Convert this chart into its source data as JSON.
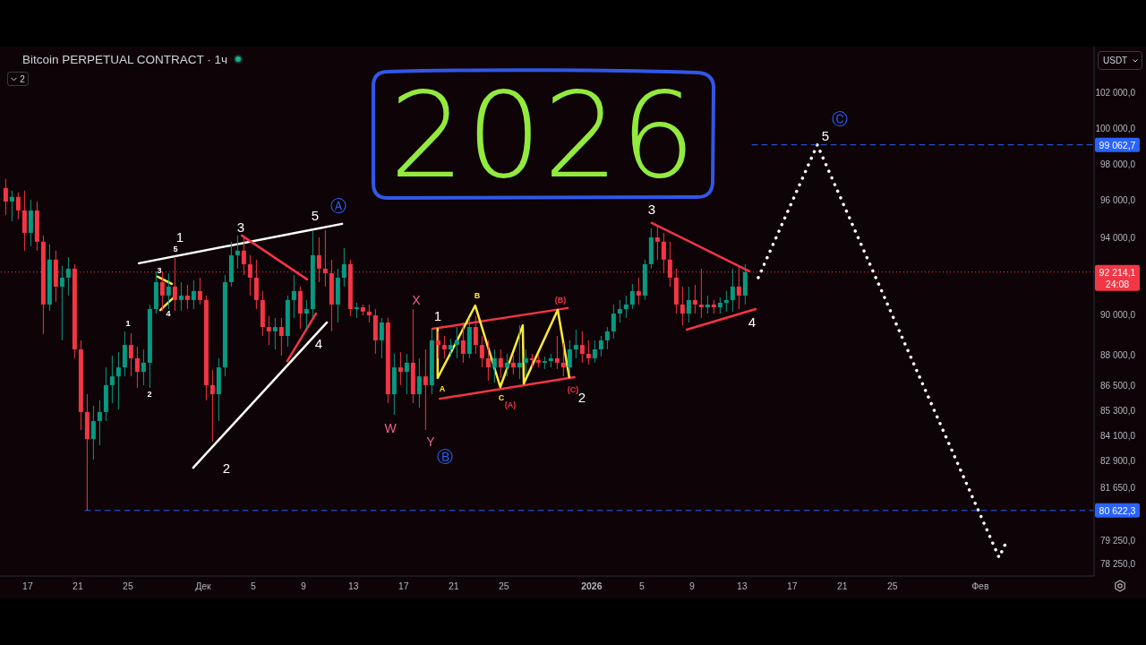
{
  "chart_data": {
    "type": "candlestick",
    "title": "Bitcoin PERPETUAL CONTRACT · 1ч",
    "ylabel": "USDT",
    "log": true,
    "marker": "none",
    "xlim": [
      "2025-11-14T19:00",
      "2026-02-10T02:00"
    ],
    "xticks": [
      {
        "value": "2025-11-17",
        "label": "17"
      },
      {
        "value": "2025-11-21",
        "label": "21"
      },
      {
        "value": "2025-11-25",
        "label": "25"
      },
      {
        "value": "2025-12-01",
        "label": "Дек"
      },
      {
        "value": "2025-12-05",
        "label": "5"
      },
      {
        "value": "2025-12-09",
        "label": "9"
      },
      {
        "value": "2025-12-13",
        "label": "13"
      },
      {
        "value": "2025-12-17",
        "label": "17"
      },
      {
        "value": "2025-12-21",
        "label": "21"
      },
      {
        "value": "2025-12-25",
        "label": "25"
      },
      {
        "value": "2026-01-01",
        "label": "2026"
      },
      {
        "value": "2026-01-05",
        "label": "5"
      },
      {
        "value": "2026-01-09",
        "label": "9"
      },
      {
        "value": "2026-01-13",
        "label": "13"
      },
      {
        "value": "2026-01-17",
        "label": "17"
      },
      {
        "value": "2026-01-21",
        "label": "21"
      },
      {
        "value": "2026-01-25",
        "label": "25"
      },
      {
        "value": "2026-02-01",
        "label": "Фев"
      }
    ],
    "ylim": [
      77700,
      104700
    ],
    "yticks": [
      {
        "value": 102000,
        "label": "102 000,0"
      },
      {
        "value": 100000,
        "label": "100 000,0"
      },
      {
        "value": 98000,
        "label": "98 000,0"
      },
      {
        "value": 96000,
        "label": "96 000,0"
      },
      {
        "value": 94000,
        "label": "94 000,0"
      },
      {
        "value": 90000,
        "label": "90 000,0"
      },
      {
        "value": 88000,
        "label": "88 000,0"
      },
      {
        "value": 86500,
        "label": "86 500,0"
      },
      {
        "value": 85300,
        "label": "85 300,0"
      },
      {
        "value": 84100,
        "label": "84 100,0"
      },
      {
        "value": 82900,
        "label": "82 900,0"
      },
      {
        "value": 81650,
        "label": "81 650,0"
      },
      {
        "value": 79250,
        "label": "79 250,0"
      },
      {
        "value": 78250,
        "label": "78 250,0"
      }
    ],
    "x": [
      "2025-11-15T06:00",
      "2025-11-15T18:00",
      "2025-11-16T06:00",
      "2025-11-16T18:00",
      "2025-11-17T06:00",
      "2025-11-17T18:00",
      "2025-11-18T06:00",
      "2025-11-18T18:00",
      "2025-11-19T06:00",
      "2025-11-19T18:00",
      "2025-11-20T06:00",
      "2025-11-20T18:00",
      "2025-11-21T06:00",
      "2025-11-21T18:00",
      "2025-11-22T06:00",
      "2025-11-22T18:00",
      "2025-11-23T06:00",
      "2025-11-23T18:00",
      "2025-11-24T06:00",
      "2025-11-24T18:00",
      "2025-11-25T06:00",
      "2025-11-25T18:00",
      "2025-11-26T06:00",
      "2025-11-26T18:00",
      "2025-11-27T06:00",
      "2025-11-27T18:00",
      "2025-11-28T06:00",
      "2025-11-28T18:00",
      "2025-11-29T06:00",
      "2025-11-29T18:00",
      "2025-11-30T06:00",
      "2025-11-30T18:00",
      "2025-12-01T06:00",
      "2025-12-01T18:00",
      "2025-12-02T06:00",
      "2025-12-02T18:00",
      "2025-12-03T06:00",
      "2025-12-03T18:00",
      "2025-12-04T06:00",
      "2025-12-04T18:00",
      "2025-12-05T06:00",
      "2025-12-05T18:00",
      "2025-12-06T06:00",
      "2025-12-06T18:00",
      "2025-12-07T06:00",
      "2025-12-07T18:00",
      "2025-12-08T06:00",
      "2025-12-08T18:00",
      "2025-12-09T06:00",
      "2025-12-09T18:00",
      "2025-12-10T06:00",
      "2025-12-10T18:00",
      "2025-12-11T06:00",
      "2025-12-11T18:00",
      "2025-12-12T06:00",
      "2025-12-12T18:00",
      "2025-12-13T06:00",
      "2025-12-13T18:00",
      "2025-12-14T06:00",
      "2025-12-14T18:00",
      "2025-12-15T06:00",
      "2025-12-15T18:00",
      "2025-12-16T06:00",
      "2025-12-16T18:00",
      "2025-12-17T06:00",
      "2025-12-17T18:00",
      "2025-12-18T06:00",
      "2025-12-18T18:00",
      "2025-12-19T06:00",
      "2025-12-19T18:00",
      "2025-12-20T06:00",
      "2025-12-20T18:00",
      "2025-12-21T06:00",
      "2025-12-21T18:00",
      "2025-12-22T06:00",
      "2025-12-22T18:00",
      "2025-12-23T06:00",
      "2025-12-23T18:00",
      "2025-12-24T06:00",
      "2025-12-24T18:00",
      "2025-12-25T06:00",
      "2025-12-25T18:00",
      "2025-12-26T06:00",
      "2025-12-26T18:00",
      "2025-12-27T06:00",
      "2025-12-27T18:00",
      "2025-12-28T06:00",
      "2025-12-28T18:00",
      "2025-12-29T06:00",
      "2025-12-29T18:00",
      "2025-12-30T06:00",
      "2025-12-30T18:00",
      "2025-12-31T06:00",
      "2025-12-31T18:00",
      "2026-01-01T06:00",
      "2026-01-01T18:00",
      "2026-01-02T06:00",
      "2026-01-02T18:00",
      "2026-01-03T06:00",
      "2026-01-03T18:00",
      "2026-01-04T06:00",
      "2026-01-04T18:00",
      "2026-01-05T06:00",
      "2026-01-05T18:00",
      "2026-01-06T06:00",
      "2026-01-06T18:00",
      "2026-01-07T06:00",
      "2026-01-07T18:00",
      "2026-01-08T06:00",
      "2026-01-08T18:00",
      "2026-01-09T06:00",
      "2026-01-09T18:00",
      "2026-01-10T06:00",
      "2026-01-10T18:00",
      "2026-01-11T06:00",
      "2026-01-11T18:00",
      "2026-01-12T06:00",
      "2026-01-12T18:00",
      "2026-01-13T06:00"
    ],
    "ohlc": [
      [
        96680,
        97180,
        95230,
        95950
      ],
      [
        95950,
        96540,
        94890,
        96200
      ],
      [
        96200,
        96440,
        94990,
        95470
      ],
      [
        95470,
        96540,
        93330,
        94270
      ],
      [
        94270,
        96050,
        93560,
        95470
      ],
      [
        95470,
        95950,
        93330,
        93800
      ],
      [
        93800,
        94130,
        89040,
        90540
      ],
      [
        90540,
        93660,
        90220,
        92860
      ],
      [
        92860,
        93330,
        90680,
        91460
      ],
      [
        91460,
        92530,
        88730,
        91920
      ],
      [
        91920,
        92990,
        91000,
        92390
      ],
      [
        92390,
        92620,
        87840,
        88280
      ],
      [
        88280,
        88730,
        84360,
        85220
      ],
      [
        85220,
        86080,
        80620,
        83930
      ],
      [
        83930,
        85520,
        82960,
        84790
      ],
      [
        84790,
        85780,
        83640,
        85220
      ],
      [
        85220,
        87390,
        84790,
        86520
      ],
      [
        86520,
        87970,
        85650,
        86950
      ],
      [
        86950,
        88150,
        85340,
        87390
      ],
      [
        87390,
        89180,
        86950,
        88500
      ],
      [
        88500,
        89090,
        86950,
        87840
      ],
      [
        87840,
        88410,
        86390,
        87170
      ],
      [
        87170,
        88280,
        86520,
        87620
      ],
      [
        87620,
        90540,
        86390,
        90310
      ],
      [
        90310,
        92250,
        90080,
        91690
      ],
      [
        91690,
        92250,
        90220,
        91000
      ],
      [
        91000,
        92150,
        90310,
        91460
      ],
      [
        91460,
        92950,
        90220,
        90770
      ],
      [
        90770,
        91690,
        90220,
        91000
      ],
      [
        91000,
        91550,
        90310,
        90770
      ],
      [
        90770,
        91780,
        90310,
        91230
      ],
      [
        91230,
        91920,
        90540,
        90770
      ],
      [
        90770,
        91000,
        85780,
        86520
      ],
      [
        86520,
        87260,
        83810,
        86080
      ],
      [
        86080,
        87840,
        84790,
        87390
      ],
      [
        87390,
        92060,
        86950,
        91690
      ],
      [
        91690,
        93800,
        91460,
        93090
      ],
      [
        93090,
        94130,
        92390,
        93330
      ],
      [
        93330,
        94130,
        92060,
        92620
      ],
      [
        92620,
        93090,
        91000,
        91920
      ],
      [
        91920,
        92860,
        90310,
        90770
      ],
      [
        90770,
        91230,
        88950,
        89400
      ],
      [
        89400,
        89950,
        88500,
        89180
      ],
      [
        89180,
        89860,
        88280,
        89400
      ],
      [
        89400,
        89860,
        87970,
        88950
      ],
      [
        88950,
        91000,
        88410,
        90770
      ],
      [
        90770,
        92060,
        89860,
        91230
      ],
      [
        91230,
        91460,
        89310,
        90080
      ],
      [
        90080,
        90770,
        89310,
        90310
      ],
      [
        90310,
        94370,
        89860,
        93090
      ],
      [
        93090,
        94030,
        91690,
        92390
      ],
      [
        92390,
        94420,
        91460,
        92150
      ],
      [
        92150,
        92860,
        89180,
        90540
      ],
      [
        90540,
        92390,
        89630,
        91920
      ],
      [
        91920,
        93470,
        91460,
        92620
      ],
      [
        92620,
        92860,
        89950,
        90310
      ],
      [
        90310,
        90630,
        89860,
        90400
      ],
      [
        90400,
        90540,
        89990,
        90180
      ],
      [
        90180,
        90540,
        89630,
        89990
      ],
      [
        89990,
        90310,
        88060,
        88730
      ],
      [
        88730,
        89860,
        87840,
        89630
      ],
      [
        89630,
        89860,
        85650,
        86080
      ],
      [
        86080,
        88060,
        85090,
        87390
      ],
      [
        87390,
        88150,
        86520,
        87170
      ],
      [
        87170,
        88060,
        86080,
        87620
      ],
      [
        87620,
        90310,
        85650,
        86080
      ],
      [
        86080,
        87840,
        85430,
        86950
      ],
      [
        86950,
        88280,
        84360,
        86520
      ],
      [
        86520,
        89310,
        86080,
        88730
      ],
      [
        88730,
        89180,
        87840,
        88500
      ],
      [
        88500,
        88950,
        87840,
        88280
      ],
      [
        88280,
        88820,
        87920,
        88500
      ],
      [
        88500,
        89400,
        87840,
        88730
      ],
      [
        88730,
        89630,
        87620,
        88060
      ],
      [
        88060,
        89860,
        87840,
        89400
      ],
      [
        89400,
        89950,
        88060,
        88500
      ],
      [
        88500,
        88950,
        87390,
        87840
      ],
      [
        87840,
        88730,
        86740,
        87390
      ],
      [
        87390,
        88280,
        86650,
        87840
      ],
      [
        87840,
        88280,
        86870,
        87390
      ],
      [
        87390,
        88060,
        86950,
        87620
      ],
      [
        87620,
        88060,
        87040,
        87390
      ],
      [
        87390,
        89490,
        86820,
        87620
      ],
      [
        87620,
        88280,
        86950,
        87840
      ],
      [
        87840,
        88060,
        87390,
        87750
      ],
      [
        87750,
        88010,
        87390,
        87620
      ],
      [
        87620,
        87920,
        87310,
        87700
      ],
      [
        87700,
        88060,
        87390,
        87840
      ],
      [
        87840,
        88950,
        87310,
        87620
      ],
      [
        87620,
        88590,
        86950,
        87390
      ],
      [
        87390,
        88730,
        87040,
        88280
      ],
      [
        88280,
        89270,
        87840,
        88500
      ],
      [
        88500,
        89180,
        87620,
        88060
      ],
      [
        88060,
        88730,
        87530,
        87840
      ],
      [
        87840,
        88730,
        87620,
        88280
      ],
      [
        88280,
        88950,
        87920,
        88730
      ],
      [
        88730,
        89400,
        88280,
        89180
      ],
      [
        89180,
        90540,
        88820,
        90080
      ],
      [
        90080,
        90770,
        89630,
        90310
      ],
      [
        90310,
        91000,
        89860,
        90540
      ],
      [
        90540,
        91600,
        90310,
        91230
      ],
      [
        91230,
        91920,
        90540,
        91000
      ],
      [
        91000,
        92860,
        90770,
        92620
      ],
      [
        92620,
        94510,
        92390,
        94030
      ],
      [
        94030,
        94610,
        92860,
        93800
      ],
      [
        93800,
        94270,
        92150,
        92860
      ],
      [
        92860,
        93800,
        91460,
        91920
      ],
      [
        91920,
        92390,
        90080,
        90540
      ],
      [
        90540,
        91460,
        89490,
        90080
      ],
      [
        90080,
        91460,
        89630,
        90770
      ],
      [
        90770,
        91550,
        90080,
        90540
      ],
      [
        90540,
        92390,
        89860,
        90400
      ],
      [
        90400,
        91000,
        90080,
        90540
      ],
      [
        90540,
        90770,
        90080,
        90400
      ],
      [
        90400,
        90900,
        90080,
        90630
      ],
      [
        90630,
        91230,
        90180,
        90770
      ],
      [
        90770,
        92390,
        90180,
        91460
      ],
      [
        91460,
        92480,
        90310,
        91000
      ],
      [
        91000,
        92620,
        90540,
        92210
      ]
    ],
    "colors": [
      "#f23645",
      "#089981",
      "#f23645",
      "#f23645",
      "#089981",
      "#f23645",
      "#f23645",
      "#089981",
      "#f23645",
      "#089981",
      "#089981",
      "#f23645",
      "#f23645",
      "#f23645",
      "#089981",
      "#089981",
      "#089981",
      "#089981",
      "#089981",
      "#089981",
      "#f23645",
      "#f23645",
      "#089981",
      "#089981",
      "#089981",
      "#f23645",
      "#089981",
      "#f23645",
      "#089981",
      "#f23645",
      "#089981",
      "#f23645",
      "#f23645",
      "#f23645",
      "#089981",
      "#089981",
      "#089981",
      "#089981",
      "#f23645",
      "#f23645",
      "#f23645",
      "#f23645",
      "#f23645",
      "#089981",
      "#f23645",
      "#089981",
      "#089981",
      "#f23645",
      "#089981",
      "#089981",
      "#f23645",
      "#f23645",
      "#f23645",
      "#089981",
      "#089981",
      "#f23645",
      "#089981",
      "#f23645",
      "#f23645",
      "#f23645",
      "#089981",
      "#f23645",
      "#089981",
      "#f23645",
      "#089981",
      "#f23645",
      "#089981",
      "#f23645",
      "#089981",
      "#f23645",
      "#f23645",
      "#089981",
      "#089981",
      "#f23645",
      "#089981",
      "#f23645",
      "#f23645",
      "#f23645",
      "#089981",
      "#f23645",
      "#089981",
      "#f23645",
      "#089981",
      "#089981",
      "#f23645",
      "#f23645",
      "#089981",
      "#089981",
      "#f23645",
      "#f23645",
      "#089981",
      "#089981",
      "#f23645",
      "#f23645",
      "#089981",
      "#089981",
      "#089981",
      "#089981",
      "#089981",
      "#089981",
      "#089981",
      "#f23645",
      "#089981",
      "#089981",
      "#f23645",
      "#f23645",
      "#f23645",
      "#f23645",
      "#f23645",
      "#089981",
      "#f23645",
      "#f23645",
      "#089981",
      "#f23645",
      "#089981",
      "#089981",
      "#089981",
      "#f23645",
      "#089981"
    ],
    "series": [
      {
        "type": "line",
        "x": [
          "2025-11-25T21:00",
          "2025-12-12T02:00"
        ],
        "values": [
          92670,
          94750
        ],
        "color": "#ffffff",
        "line_style": "solid"
      },
      {
        "type": "line",
        "x": [
          "2025-11-30T05:00",
          "2025-12-10T21:00"
        ],
        "values": [
          82590,
          89630
        ],
        "color": "#ffffff",
        "line_style": "solid"
      },
      {
        "type": "line",
        "x": [
          "2025-12-04T02:00",
          "2025-12-09T07:00"
        ],
        "values": [
          94130,
          91830
        ],
        "color": "#f23645",
        "line_style": "solid"
      },
      {
        "type": "line",
        "x": [
          "2025-12-07T17:00",
          "2025-12-10T00:00"
        ],
        "values": [
          87700,
          90080
        ],
        "color": "#f23645",
        "line_style": "solid"
      },
      {
        "type": "line",
        "x": [
          "2025-11-27T09:00",
          "2025-11-28T12:00"
        ],
        "values": [
          91970,
          91600
        ],
        "color": "#ffeb3b",
        "line_style": "solid"
      },
      {
        "type": "line",
        "x": [
          "2025-11-27T14:00",
          "2025-11-28T14:00"
        ],
        "values": [
          90260,
          90860
        ],
        "color": "#ffeb3b",
        "line_style": "solid"
      },
      {
        "type": "line",
        "x": [
          "2025-12-19T07:00",
          "2025-12-30T02:00"
        ],
        "values": [
          89310,
          90360
        ],
        "color": "#f23645",
        "line_style": "solid"
      },
      {
        "type": "line",
        "x": [
          "2025-12-19T21:00",
          "2025-12-30T15:00"
        ],
        "values": [
          85860,
          86910
        ],
        "color": "#f23645",
        "line_style": "solid"
      },
      {
        "type": "line",
        "x": [
          "2025-12-19T17:00",
          "2025-12-19T17:00",
          "2025-12-22T17:00",
          "2025-12-24T17:00",
          "2025-12-26T12:00",
          "2025-12-26T14:00",
          "2025-12-29T07:00",
          "2025-12-30T05:00"
        ],
        "values": [
          89310,
          86870,
          90490,
          86430,
          89490,
          86600,
          90260,
          86910
        ],
        "color": "#ffeb3b",
        "line_style": "solid"
      },
      {
        "type": "line",
        "x": [
          "2026-01-05T19:00",
          "2026-01-13T14:00"
        ],
        "values": [
          94800,
          92250
        ],
        "color": "#f23645",
        "line_style": "solid"
      },
      {
        "type": "line",
        "x": [
          "2026-01-08T14:00",
          "2026-01-14T02:00"
        ],
        "values": [
          89270,
          90310
        ],
        "color": "#f23645",
        "line_style": "solid"
      },
      {
        "type": "line",
        "x": [
          "2026-01-14T07:00",
          "2026-01-19T00:00",
          "2026-02-02T12:00",
          "2026-02-03T02:00"
        ],
        "values": [
          91920,
          99060,
          78520,
          79200
        ],
        "color": "#ffffff",
        "line_style": "dotted"
      },
      {
        "type": "line",
        "x": [
          "2026-01-13T19:00",
          "2026-02-10T02:00"
        ],
        "values": [
          99062.7,
          99062.7
        ],
        "color": "#2962ff",
        "line_style": "dashed",
        "value_labels": [
          null,
          "99 062,7"
        ]
      },
      {
        "type": "line",
        "x": [
          "2025-11-21T14:00",
          "2026-02-10T02:00"
        ],
        "values": [
          80622.3,
          80622.3
        ],
        "color": "#2962ff",
        "line_style": "dashed",
        "value_labels": [
          null,
          "80 622,3"
        ]
      }
    ],
    "ref_lines": [
      {
        "axis": "y",
        "value": 92214.1,
        "label": "92 214,1\n24:08",
        "color": "#f23645",
        "line_style": "dotted"
      }
    ],
    "annotations": [
      "2026",
      "2",
      "1",
      "5",
      "3",
      "4",
      "1",
      "2",
      "3",
      "5",
      "Ⓐ",
      "2",
      "4",
      "W",
      "X",
      "Y",
      "Ⓑ",
      "1",
      "A",
      "B",
      "C",
      "(A)",
      "(B)",
      "(C)",
      "2",
      "3",
      "4",
      "5",
      "Ⓒ"
    ]
  }
}
